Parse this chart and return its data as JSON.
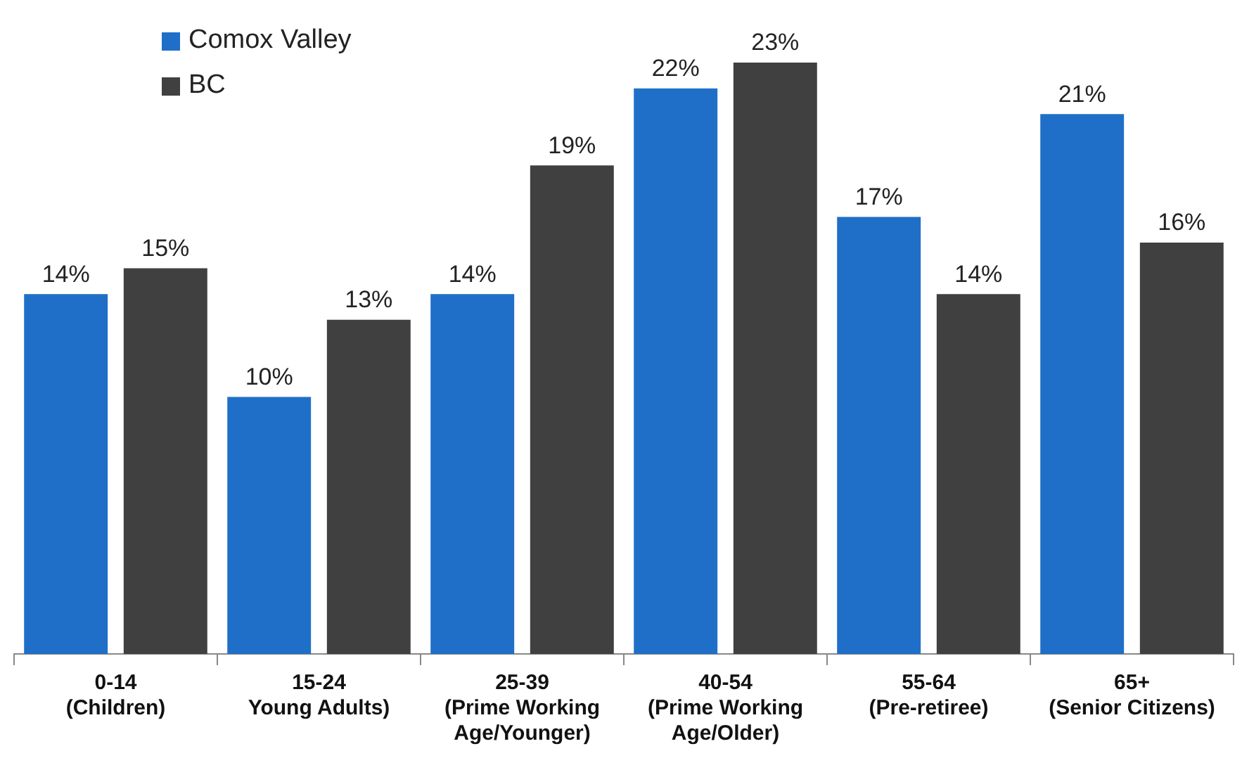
{
  "chart_data": {
    "type": "bar",
    "categories": [
      "0-14\n(Children)",
      "15-24\nYoung Adults)",
      "25-39\n(Prime Working\nAge/Younger)",
      "40-54\n(Prime Working\nAge/Older)",
      "55-64\n(Pre-retiree)",
      "65+\n(Senior Citizens)"
    ],
    "series": [
      {
        "name": "Comox Valley",
        "color": "#1f6fc8",
        "values": [
          14,
          10,
          14,
          22,
          17,
          21
        ],
        "value_labels": [
          "14%",
          "10%",
          "14%",
          "22%",
          "17%",
          "21%"
        ]
      },
      {
        "name": "BC",
        "color": "#404040",
        "values": [
          15,
          13,
          19,
          23,
          14,
          16
        ],
        "value_labels": [
          "15%",
          "13%",
          "19%",
          "23%",
          "14%",
          "16%"
        ]
      }
    ],
    "legend": "top left",
    "grid": false
  }
}
